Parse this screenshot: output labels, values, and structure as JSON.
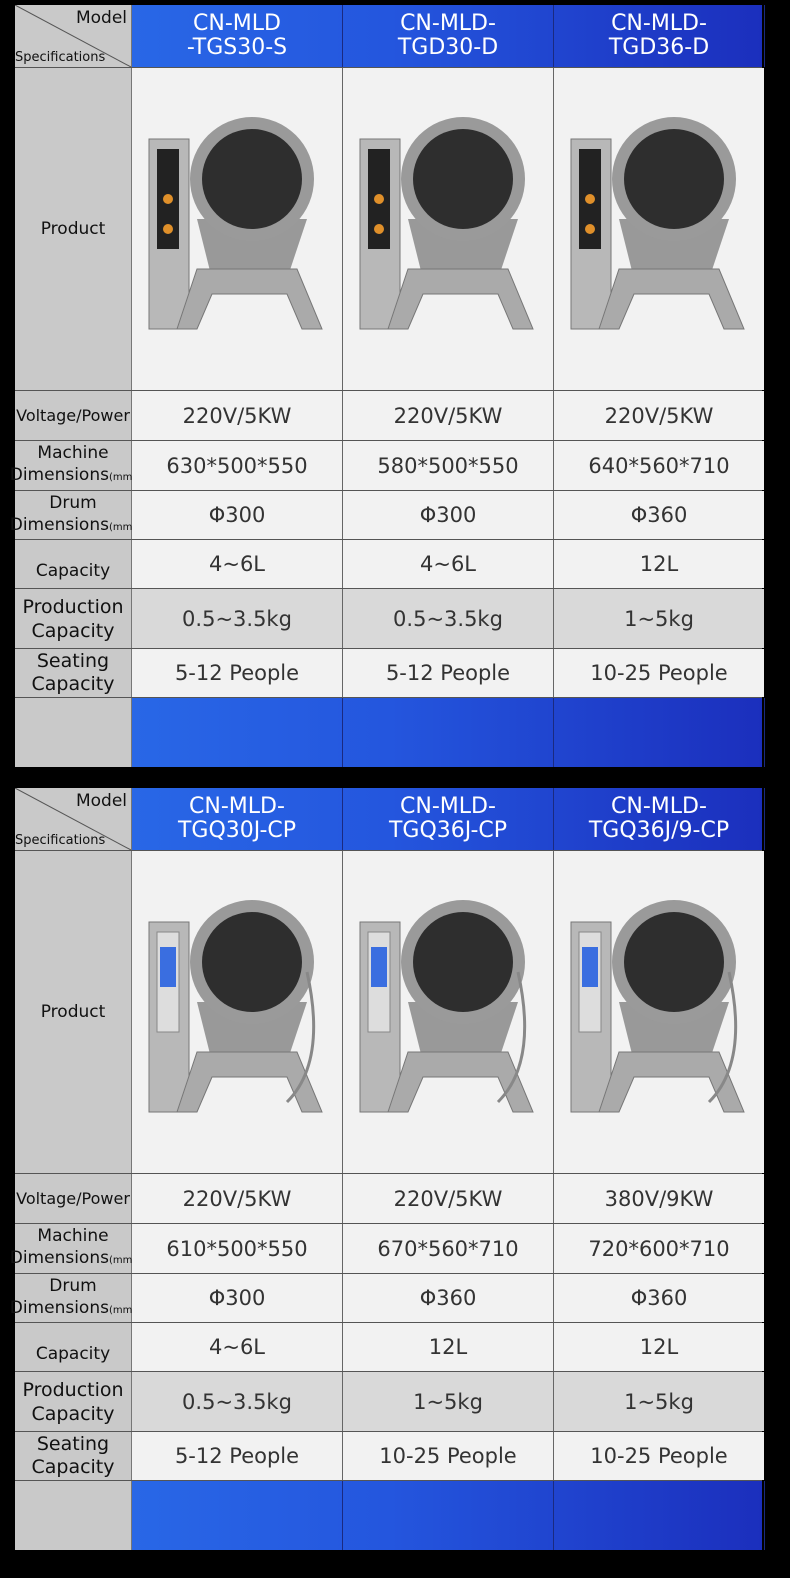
{
  "corner": {
    "model": "Model",
    "specifications": "Specifications"
  },
  "labels": {
    "product": "Product",
    "voltage": "Voltage/Power",
    "machine": "Machine",
    "machine_sub": "Dimensions",
    "unit": "(mm)",
    "drum": "Drum",
    "drum_sub": "Dimensions",
    "capacity": "Capacity",
    "production1": "Production",
    "production2": "Capacity",
    "seating1": "Seating",
    "seating2": "Capacity"
  },
  "tables": [
    {
      "models": [
        {
          "l1": "CN-MLD",
          "l2": "-TGS30-S"
        },
        {
          "l1": "CN-MLD-",
          "l2": "TGD30-D"
        },
        {
          "l1": "CN-MLD-",
          "l2": "TGD36-D"
        }
      ],
      "voltage": [
        "220V/5KW",
        "220V/5KW",
        "220V/5KW"
      ],
      "machine": [
        "630*500*550",
        "580*500*550",
        "640*560*710"
      ],
      "drum": [
        "Φ300",
        "Φ300",
        "Φ360"
      ],
      "capacity": [
        "4~6L",
        "4~6L",
        "12L"
      ],
      "production": [
        "0.5~3.5kg",
        "0.5~3.5kg",
        "1~5kg"
      ],
      "seating": [
        "5-12 People",
        "5-12 People",
        "10-25 People"
      ]
    },
    {
      "models": [
        {
          "l1": "CN-MLD-",
          "l2": "TGQ30J-CP"
        },
        {
          "l1": "CN-MLD-",
          "l2": "TGQ36J-CP"
        },
        {
          "l1": "CN-MLD-",
          "l2": "TGQ36J/9-CP"
        }
      ],
      "voltage": [
        "220V/5KW",
        "220V/5KW",
        "380V/9KW"
      ],
      "machine": [
        "610*500*550",
        "670*560*710",
        "720*600*710"
      ],
      "drum": [
        "Φ300",
        "Φ360",
        "Φ360"
      ],
      "capacity": [
        "4~6L",
        "12L",
        "12L"
      ],
      "production": [
        "0.5~3.5kg",
        "1~5kg",
        "1~5kg"
      ],
      "seating": [
        "5-12 People",
        "10-25 People",
        "10-25 People"
      ]
    }
  ]
}
